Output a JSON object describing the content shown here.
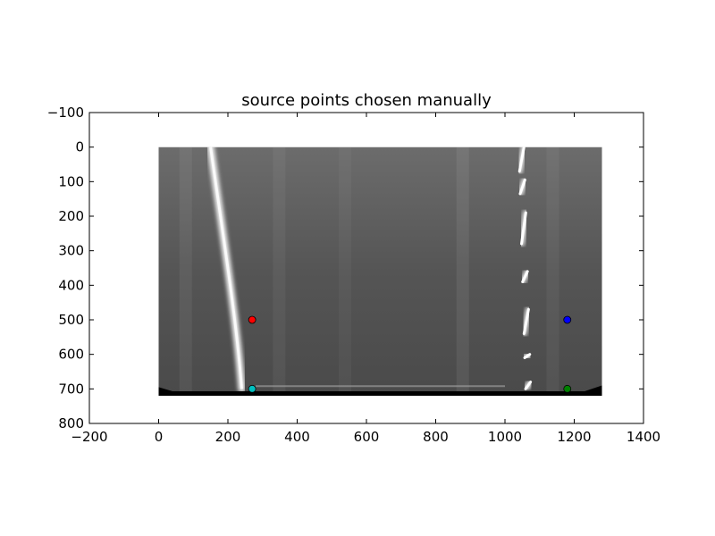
{
  "chart_data": {
    "type": "scatter",
    "title": "source points chosen manually",
    "xlabel": "",
    "ylabel": "",
    "xlim": [
      -200,
      1400
    ],
    "ylim": [
      800,
      -100
    ],
    "y_inverted": true,
    "grid": false,
    "legend": "none",
    "x_ticks": [
      -200,
      0,
      200,
      400,
      600,
      800,
      1000,
      1200,
      1400
    ],
    "y_ticks": [
      -100,
      0,
      100,
      200,
      300,
      400,
      500,
      600,
      700,
      800
    ],
    "x_tick_labels": [
      "−200",
      "0",
      "200",
      "400",
      "600",
      "800",
      "1000",
      "1200",
      "1400"
    ],
    "y_tick_labels": [
      "−100",
      "0",
      "100",
      "200",
      "300",
      "400",
      "500",
      "600",
      "700",
      "800"
    ],
    "background_image": {
      "description": "grayscale warped road image",
      "extent": {
        "x": [
          0,
          1280
        ],
        "y": [
          0,
          720
        ]
      }
    },
    "points": [
      {
        "x": 270,
        "y": 500,
        "color": "#ff0000"
      },
      {
        "x": 1180,
        "y": 500,
        "color": "#0000ff"
      },
      {
        "x": 1180,
        "y": 700,
        "color": "#008000"
      },
      {
        "x": 270,
        "y": 700,
        "color": "#00bfbf"
      }
    ]
  }
}
